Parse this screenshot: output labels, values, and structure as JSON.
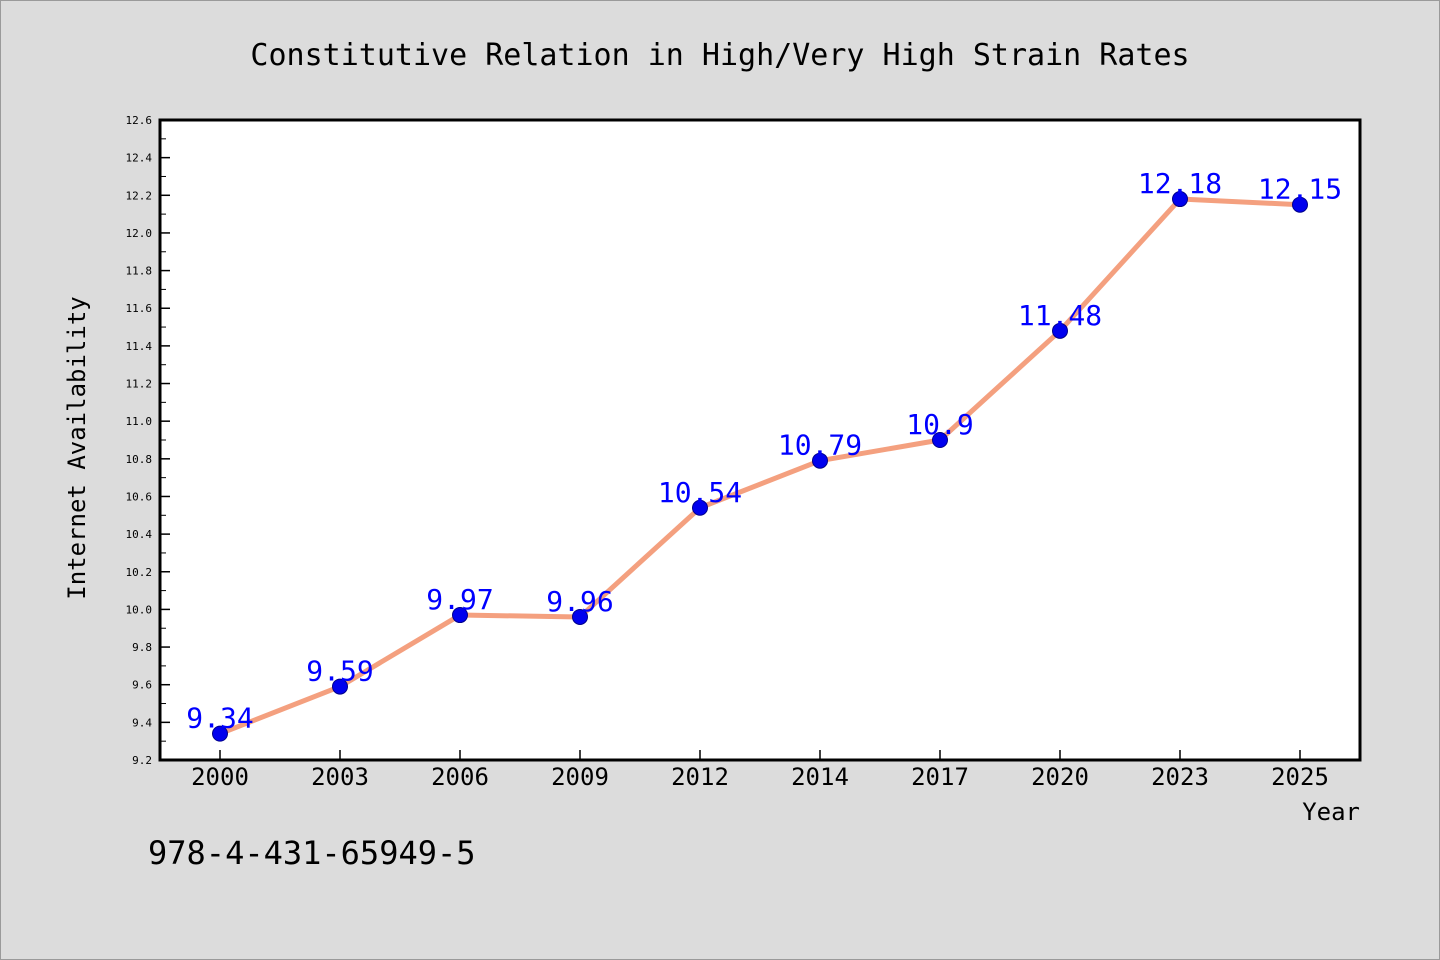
{
  "colors": {
    "background": "#dcdcdc",
    "plot_background": "#ffffff",
    "line": "#f4a07f",
    "marker": "#0000ee",
    "data_label": "#0000ff",
    "text": "#000000"
  },
  "footer_text": "978-4-431-65949-5",
  "chart_data": {
    "type": "line",
    "title": "Constitutive Relation in High/Very High Strain Rates",
    "xlabel": "Year",
    "ylabel": "Internet Availability",
    "categories": [
      "2000",
      "2003",
      "2006",
      "2009",
      "2012",
      "2014",
      "2017",
      "2020",
      "2023",
      "2025"
    ],
    "series": [
      {
        "values": [
          9.34,
          9.59,
          9.97,
          9.96,
          10.54,
          10.79,
          10.9,
          11.48,
          12.18,
          12.15
        ],
        "labels": [
          "9.34",
          "9.59",
          "9.97",
          "9.96",
          "10.54",
          "10.79",
          "10.9",
          "11.48",
          "12.18",
          "12.15"
        ]
      }
    ],
    "ylim": [
      9.2,
      12.6
    ],
    "yticks": [
      "9.2",
      "9.4",
      "9.6",
      "9.8",
      "10.0",
      "10.2",
      "10.4",
      "10.6",
      "10.8",
      "11.0",
      "11.2",
      "11.4",
      "11.6",
      "11.8",
      "12.0",
      "12.2",
      "12.4",
      "12.6"
    ],
    "grid": false,
    "legend": "none"
  }
}
